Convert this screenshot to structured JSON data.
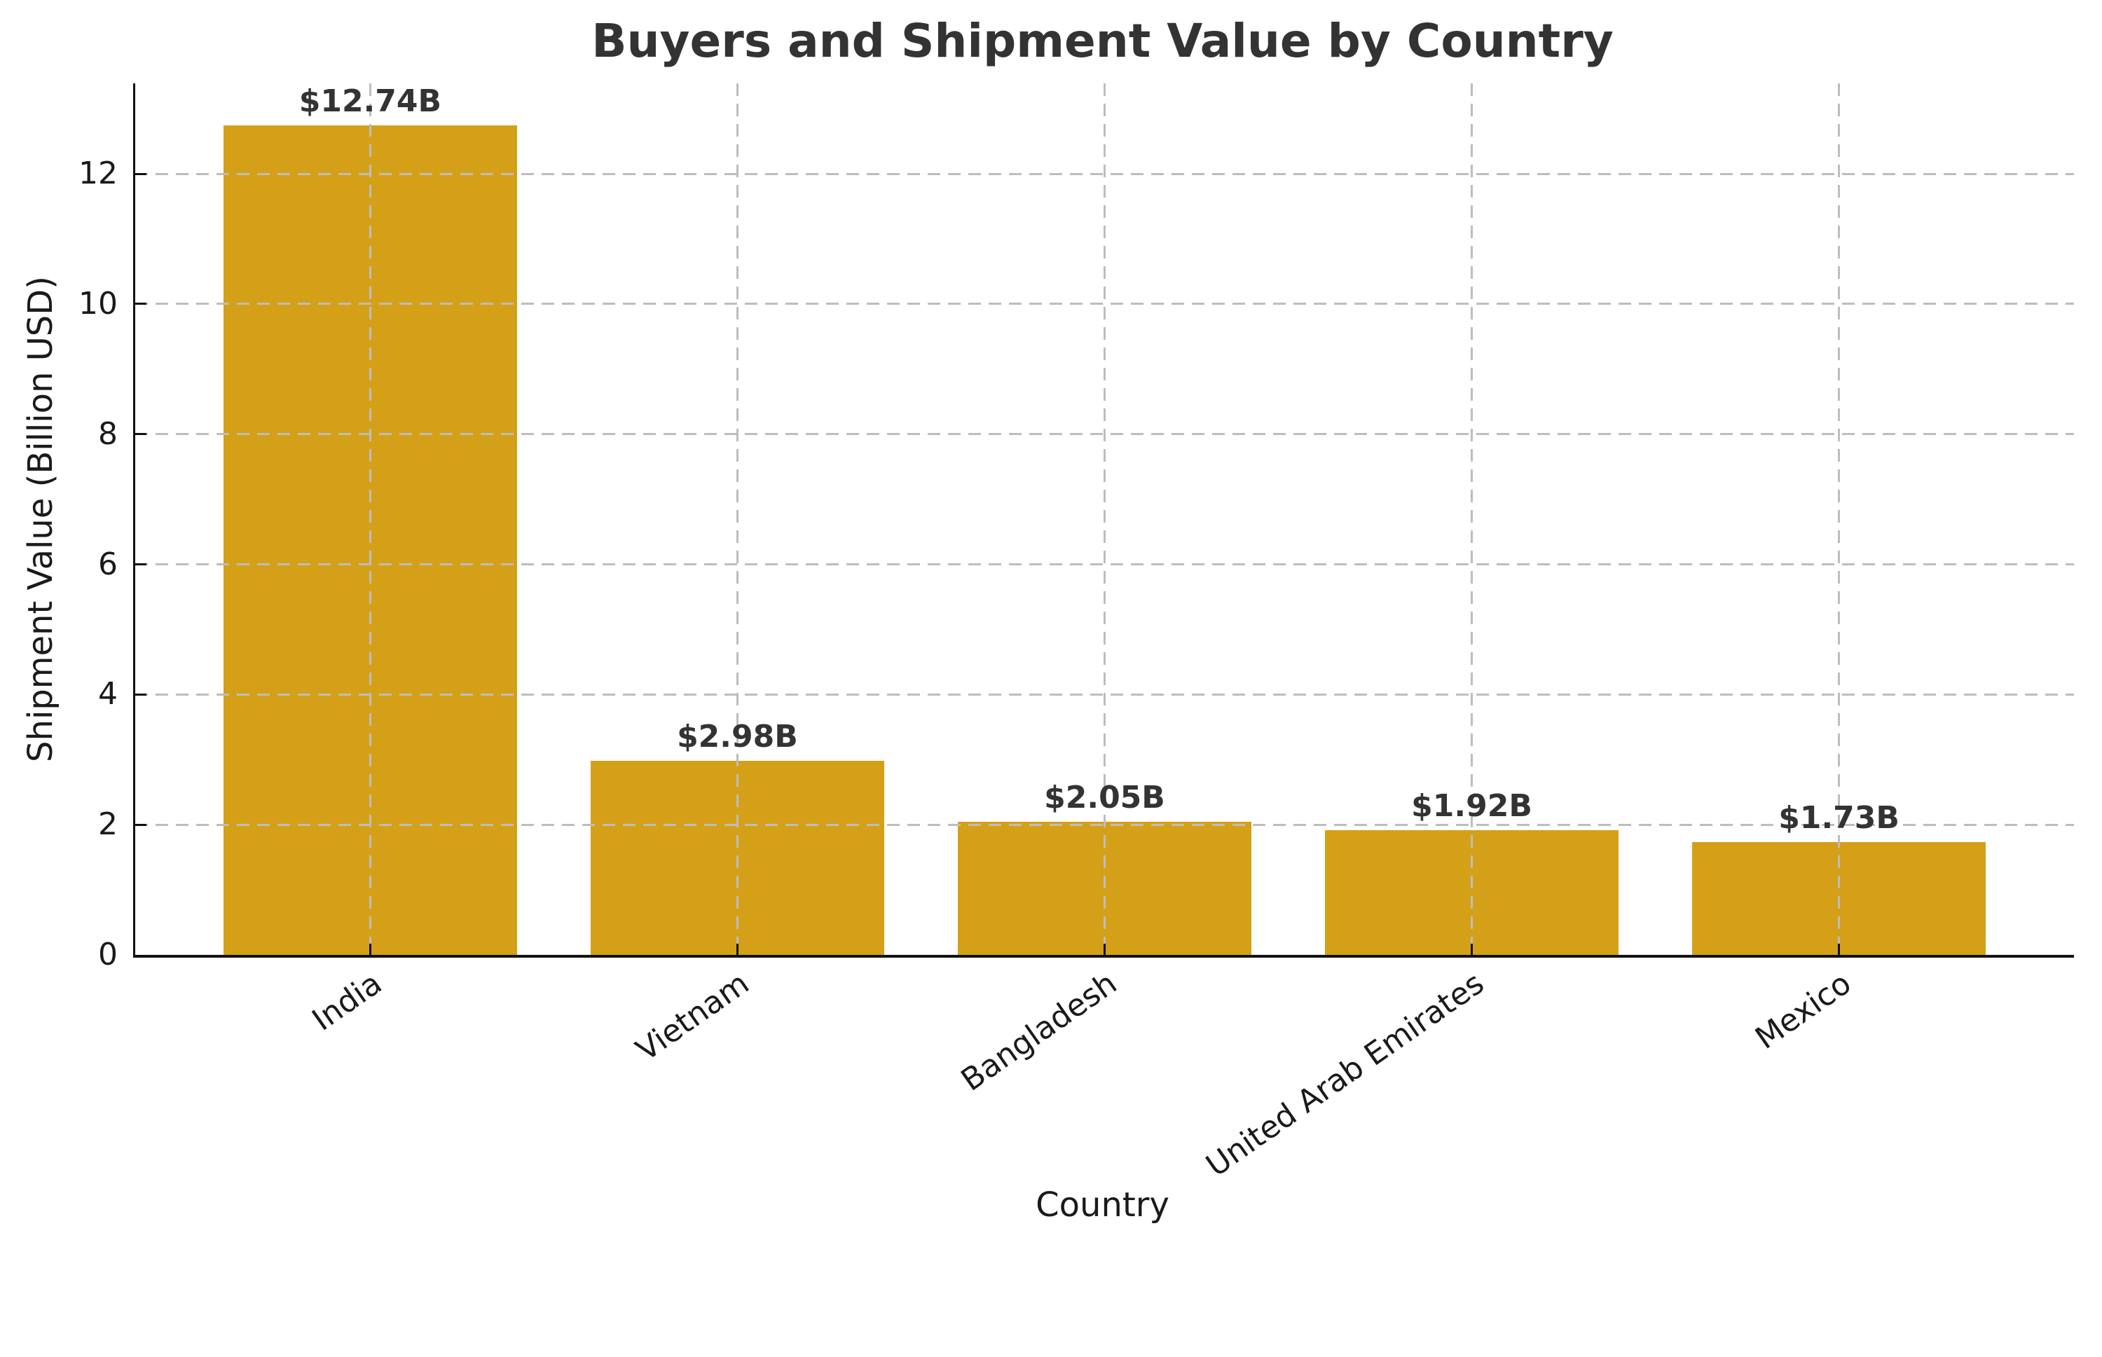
{
  "chart_data": {
    "type": "bar",
    "title": "Buyers and Shipment Value by Country",
    "xlabel": "Country",
    "ylabel": "Shipment Value (Billion USD)",
    "categories": [
      "India",
      "Vietnam",
      "Bangladesh",
      "United Arab Emirates",
      "Mexico"
    ],
    "values": [
      12.74,
      2.98,
      2.05,
      1.92,
      1.73
    ],
    "bar_labels": [
      "$12.74B",
      "$2.98B",
      "$2.05B",
      "$1.92B",
      "$1.73B"
    ],
    "yticks": [
      0,
      2,
      4,
      6,
      8,
      10,
      12
    ],
    "ylim": [
      0,
      13.39
    ],
    "grid": true,
    "grid_style": "dashed",
    "grid_over_bars": true,
    "legend": false,
    "xtick_rotation_deg": 35,
    "colors": {
      "bar": "#D4A017",
      "grid": "#BDBDBD",
      "axis": "#111111",
      "tick_text": "#1A1A1A",
      "title_text": "#333333",
      "value_text": "#333333",
      "background": "#FFFFFF"
    }
  }
}
